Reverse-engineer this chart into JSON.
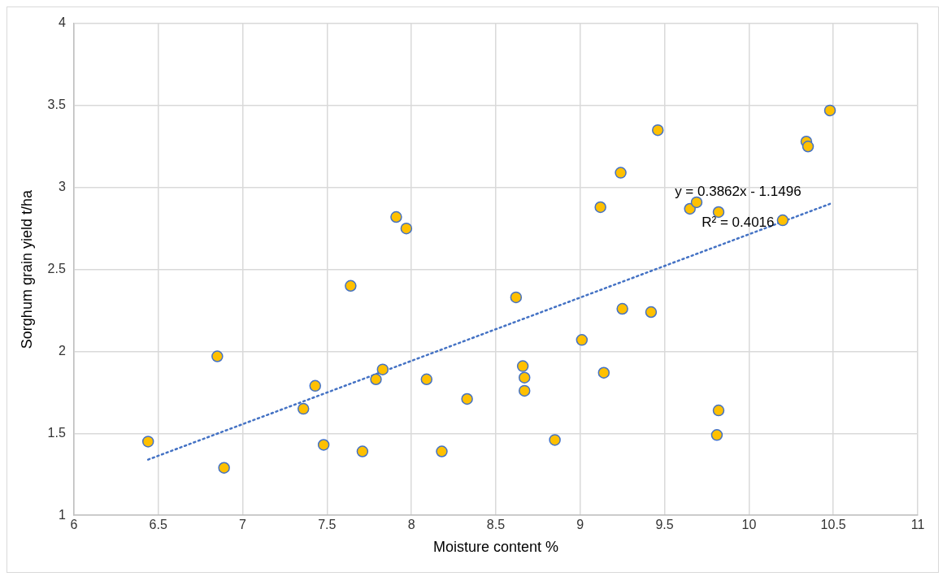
{
  "chart_data": {
    "type": "scatter",
    "xlabel": "Moisture content %",
    "ylabel": "Sorghum grain yield t/ha",
    "xlim": [
      6,
      11
    ],
    "xticks": [
      6,
      6.5,
      7,
      7.5,
      8,
      8.5,
      9,
      9.5,
      10,
      10.5,
      11
    ],
    "ylim": [
      1,
      4
    ],
    "yticks": [
      1,
      1.5,
      2,
      2.5,
      3,
      3.5,
      4
    ],
    "grid": true,
    "legend": false,
    "marker": "circle",
    "annotations": [
      "y = 0.3862x - 1.1496",
      "R² = 0.4016"
    ],
    "series": [
      {
        "color": "#ffc000",
        "x": [
          6.44,
          6.85,
          6.89,
          7.36,
          7.43,
          7.48,
          7.64,
          7.91,
          7.97,
          8.62,
          9.01,
          7.83,
          7.79,
          8.09,
          8.33,
          8.66,
          8.67,
          8.67,
          9.14,
          7.71,
          8.18,
          8.85,
          9.12,
          9.46,
          9.24,
          10.48,
          10.34,
          10.35,
          9.65,
          9.69,
          9.82,
          10.2,
          9.25,
          9.42,
          9.82,
          9.81
        ],
        "values": [
          1.45,
          1.97,
          1.29,
          1.65,
          1.79,
          1.43,
          2.4,
          2.82,
          2.75,
          2.33,
          2.07,
          1.89,
          1.83,
          1.83,
          1.71,
          1.91,
          1.84,
          1.76,
          1.87,
          1.39,
          1.39,
          1.46,
          2.88,
          3.35,
          3.09,
          3.47,
          3.28,
          3.25,
          2.87,
          2.91,
          2.85,
          2.8,
          2.26,
          2.24,
          1.64,
          1.49
        ]
      },
      {
        "type": "line",
        "color": "#4472c4",
        "line_style": "dotted",
        "marker": "none",
        "x": [
          6.44,
          10.48
        ],
        "values": [
          1.34,
          2.9
        ]
      }
    ]
  }
}
